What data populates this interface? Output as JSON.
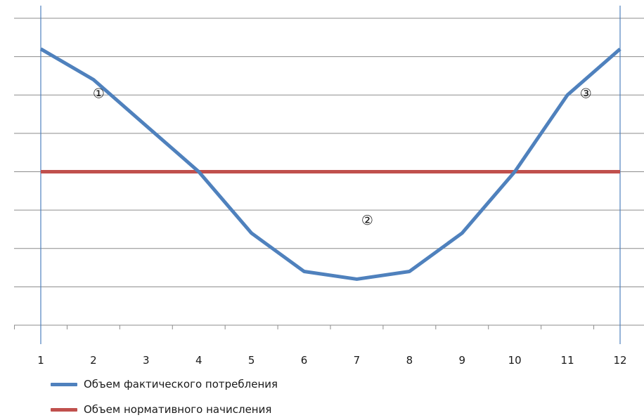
{
  "chart_data": {
    "type": "line",
    "x": [
      1,
      2,
      3,
      4,
      5,
      6,
      7,
      8,
      9,
      10,
      11,
      12
    ],
    "categories": [
      "1",
      "2",
      "3",
      "4",
      "5",
      "6",
      "7",
      "8",
      "9",
      "10",
      "11",
      "12"
    ],
    "series": [
      {
        "name": "Объем фактического потребления",
        "color": "#4f81bd",
        "values": [
          7.2,
          6.4,
          5.2,
          4.0,
          2.4,
          1.4,
          1.2,
          1.4,
          2.4,
          4.0,
          6.0,
          7.2
        ]
      },
      {
        "name": "Объем нормативного начисления",
        "color": "#c0504d",
        "values": [
          4.0,
          4.0,
          4.0,
          4.0,
          4.0,
          4.0,
          4.0,
          4.0,
          4.0,
          4.0,
          4.0,
          4.0
        ]
      }
    ],
    "ylim": [
      0,
      8
    ],
    "y_tick_labels_shown": false,
    "grid": "horizontal",
    "legend_position": "bottom-left",
    "annotations": [
      {
        "text": "①",
        "x": 2.1
      },
      {
        "text": "②",
        "x": 7.2
      },
      {
        "text": "③",
        "x": 11.35
      }
    ],
    "vertical_lines": [
      {
        "x": 1,
        "color": "#4f81bd"
      },
      {
        "x": 12,
        "color": "#4f81bd"
      }
    ]
  }
}
